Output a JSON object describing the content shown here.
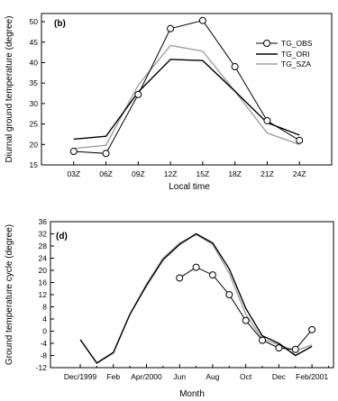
{
  "chart_data": [
    {
      "type": "line",
      "panel_label": "(b)",
      "xlabel": "Local time",
      "ylabel": "Diurnal ground temperature (degree)",
      "categories": [
        "03Z",
        "06Z",
        "09Z",
        "12Z",
        "15Z",
        "18Z",
        "21Z",
        "24Z"
      ],
      "ylim": [
        15,
        52
      ],
      "yticks": [
        15,
        20,
        25,
        30,
        35,
        40,
        45,
        50
      ],
      "legend_position": "top-right",
      "series": [
        {
          "name": "TG_OBS",
          "color": "#000000",
          "marker": "circle",
          "values": [
            18.3,
            17.8,
            32.2,
            48.3,
            50.3,
            39.0,
            25.8,
            21.0
          ]
        },
        {
          "name": "TG_ORI",
          "color": "#000000",
          "marker": "none",
          "values": [
            21.3,
            22.0,
            32.8,
            40.8,
            40.5,
            33.0,
            25.3,
            22.3
          ]
        },
        {
          "name": "TG_SZA",
          "color": "#a0a0a0",
          "marker": "none",
          "values": [
            19.0,
            19.8,
            34.5,
            44.2,
            42.8,
            33.0,
            22.8,
            20.0
          ]
        }
      ]
    },
    {
      "type": "line",
      "panel_label": "(d)",
      "xlabel": "Month",
      "ylabel": "Ground temperature cycle (degree)",
      "xticks": [
        "Dec/1999",
        "Feb",
        "Apr/2000",
        "Jun",
        "Aug",
        "Oct",
        "Dec",
        "Feb/2001"
      ],
      "xtick_positions": [
        0,
        2,
        4,
        6,
        8,
        10,
        12,
        14
      ],
      "xlim": [
        -1.8,
        15.3
      ],
      "ylim": [
        -12,
        36
      ],
      "yticks": [
        -12,
        -8,
        -4,
        0,
        4,
        8,
        12,
        16,
        20,
        24,
        28,
        32,
        36
      ],
      "series": [
        {
          "name": "TG_OBS",
          "color": "#000000",
          "marker": "circle",
          "x": [
            6,
            7,
            8,
            9,
            10,
            11,
            12,
            13,
            14
          ],
          "values": [
            17.5,
            21.0,
            18.5,
            12.0,
            3.5,
            -3.0,
            -5.5,
            -6.0,
            0.5
          ]
        },
        {
          "name": "TG_ORI",
          "color": "#000000",
          "marker": "none",
          "x": [
            0,
            1,
            2,
            3,
            4,
            5,
            6,
            7,
            8,
            9,
            10,
            11,
            12,
            13,
            14
          ],
          "values": [
            -2.8,
            -10.5,
            -7.0,
            5.5,
            15.0,
            23.5,
            28.5,
            32.0,
            29.0,
            20.5,
            7.5,
            -1.5,
            -4.0,
            -8.0,
            -5.0
          ]
        },
        {
          "name": "TG_SZA",
          "color": "#a0a0a0",
          "marker": "none",
          "x": [
            0,
            1,
            2,
            3,
            4,
            5,
            6,
            7,
            8,
            9,
            10,
            11,
            12,
            13,
            14
          ],
          "values": [
            -2.8,
            -10.5,
            -7.2,
            5.5,
            15.5,
            24.0,
            29.0,
            31.8,
            28.5,
            19.0,
            5.5,
            -2.5,
            -4.5,
            -6.5,
            -4.5
          ]
        }
      ]
    }
  ]
}
